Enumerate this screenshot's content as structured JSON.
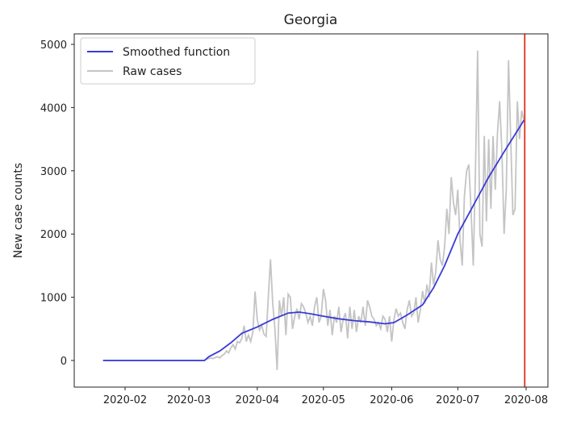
{
  "chart_data": {
    "type": "line",
    "title": "Georgia",
    "xlabel": "",
    "ylabel": "New case counts",
    "ylim": [
      -450,
      5200
    ],
    "xlim": [
      "2020-01-13",
      "2020-08-06"
    ],
    "grid": false,
    "legend_placement": "top-left",
    "x_ticks": [
      "2020-02",
      "2020-03",
      "2020-04",
      "2020-05",
      "2020-06",
      "2020-07",
      "2020-08"
    ],
    "y_ticks": [
      0,
      1000,
      2000,
      3000,
      4000,
      5000
    ],
    "vline": {
      "x": "2020-07-31",
      "color": "#e03020"
    },
    "series": [
      {
        "name": "Smoothed function",
        "color": "#3a3ad8",
        "points": [
          [
            "2020-01-22",
            0
          ],
          [
            "2020-03-08",
            0
          ],
          [
            "2020-03-10",
            60
          ],
          [
            "2020-03-15",
            150
          ],
          [
            "2020-03-20",
            280
          ],
          [
            "2020-03-25",
            430
          ],
          [
            "2020-04-01",
            530
          ],
          [
            "2020-04-08",
            650
          ],
          [
            "2020-04-15",
            750
          ],
          [
            "2020-04-20",
            765
          ],
          [
            "2020-04-25",
            740
          ],
          [
            "2020-05-01",
            700
          ],
          [
            "2020-05-08",
            660
          ],
          [
            "2020-05-15",
            630
          ],
          [
            "2020-05-22",
            610
          ],
          [
            "2020-05-29",
            580
          ],
          [
            "2020-06-02",
            600
          ],
          [
            "2020-06-08",
            720
          ],
          [
            "2020-06-15",
            880
          ],
          [
            "2020-06-20",
            1150
          ],
          [
            "2020-06-25",
            1500
          ],
          [
            "2020-07-01",
            2000
          ],
          [
            "2020-07-08",
            2450
          ],
          [
            "2020-07-15",
            2900
          ],
          [
            "2020-07-22",
            3300
          ],
          [
            "2020-07-31",
            3800
          ]
        ]
      },
      {
        "name": "Raw cases",
        "color": "#c4c4c4",
        "start": "2020-01-22",
        "values": [
          0,
          0,
          0,
          0,
          0,
          0,
          0,
          0,
          0,
          0,
          0,
          0,
          0,
          0,
          0,
          0,
          0,
          0,
          0,
          0,
          0,
          0,
          0,
          0,
          0,
          0,
          0,
          0,
          0,
          0,
          0,
          0,
          0,
          0,
          0,
          0,
          0,
          0,
          0,
          0,
          0,
          0,
          0,
          0,
          0,
          0,
          0,
          20,
          30,
          40,
          30,
          50,
          60,
          40,
          80,
          100,
          150,
          120,
          200,
          250,
          180,
          300,
          280,
          350,
          550,
          300,
          400,
          300,
          450,
          1090,
          650,
          480,
          560,
          420,
          380,
          1000,
          1600,
          900,
          500,
          -150,
          950,
          700,
          1000,
          400,
          1050,
          1000,
          500,
          700,
          820,
          650,
          900,
          850,
          750,
          600,
          700,
          550,
          850,
          1000,
          600,
          700,
          1130,
          950,
          550,
          800,
          400,
          700,
          600,
          850,
          450,
          650,
          750,
          350,
          850,
          500,
          800,
          450,
          700,
          600,
          850,
          550,
          950,
          850,
          700,
          650,
          550,
          600,
          500,
          700,
          650,
          450,
          700,
          300,
          650,
          820,
          700,
          750,
          600,
          500,
          800,
          950,
          700,
          750,
          1000,
          600,
          800,
          1100,
          900,
          1200,
          1000,
          1550,
          1200,
          1400,
          1900,
          1600,
          1500,
          1800,
          2400,
          2000,
          2900,
          2500,
          2300,
          2700,
          1900,
          1500,
          2600,
          3000,
          3100,
          2400,
          1500,
          3000,
          4900,
          2000,
          1800,
          3550,
          2200,
          3500,
          2400,
          3550,
          2700,
          3600,
          4100,
          3300,
          2000,
          2700,
          4750,
          3500,
          2300,
          2400,
          4100,
          3500,
          3950,
          3800
        ]
      }
    ]
  }
}
